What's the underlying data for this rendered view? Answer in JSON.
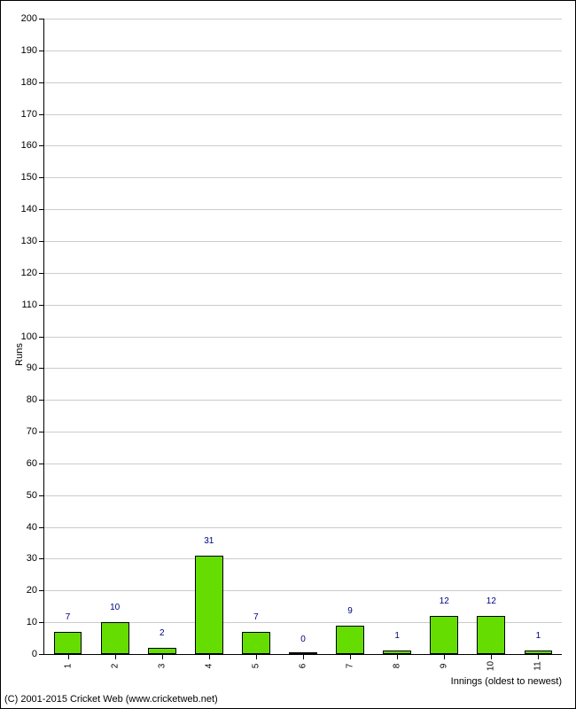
{
  "chart": {
    "type": "bar",
    "categories": [
      "1",
      "2",
      "3",
      "4",
      "5",
      "6",
      "7",
      "8",
      "9",
      "10",
      "11"
    ],
    "values": [
      7,
      10,
      2,
      31,
      7,
      0,
      9,
      1,
      12,
      12,
      1
    ],
    "value_labels": [
      "7",
      "10",
      "2",
      "31",
      "7",
      "0",
      "9",
      "1",
      "12",
      "12",
      "1"
    ],
    "bar_color": "#66dd00",
    "bar_border_color": "#000000",
    "bar_label_color": "#000080",
    "ylabel": "Runs",
    "xlabel": "Innings (oldest to newest)",
    "ylim": [
      0,
      200
    ],
    "ytick_step": 10,
    "background_color": "#ffffff",
    "grid_color": "#cccccc",
    "axis_color": "#000000",
    "label_fontsize": 11,
    "tick_fontsize": 11,
    "bar_width_ratio": 0.6
  },
  "copyright": "(C) 2001-2015 Cricket Web (www.cricketweb.net)"
}
